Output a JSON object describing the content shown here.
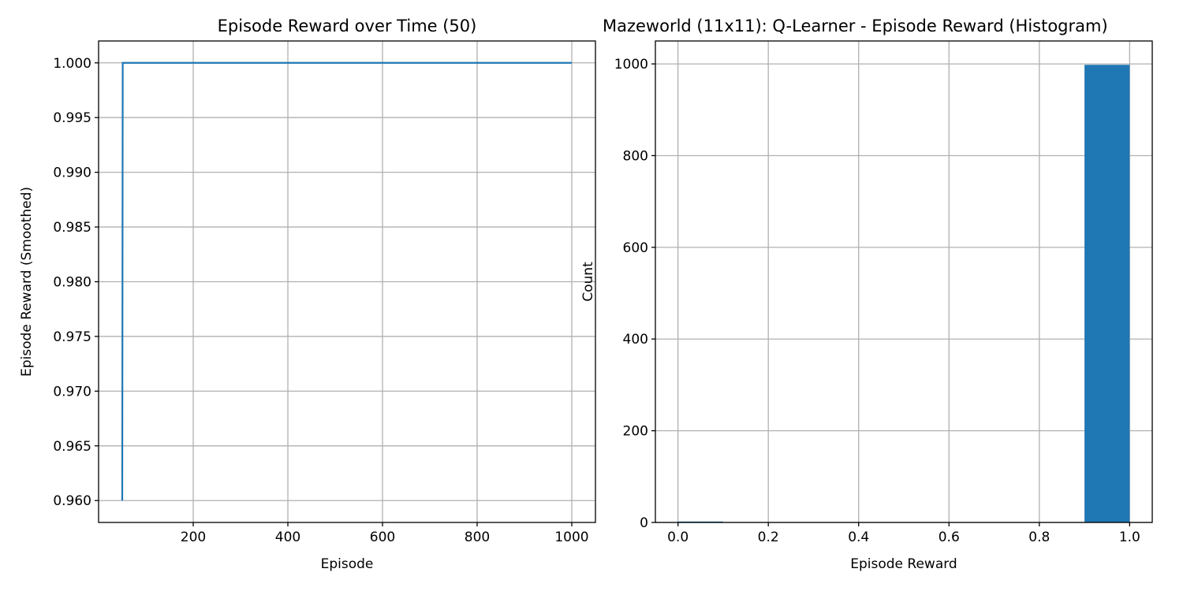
{
  "chart_data": [
    {
      "type": "line",
      "title": "Episode Reward over Time (50)",
      "xlabel": "Episode",
      "ylabel": "Episode Reward (Smoothed)",
      "xlim": [
        0,
        1050
      ],
      "ylim": [
        0.958,
        1.002
      ],
      "xticks": [
        200,
        400,
        600,
        800,
        1000
      ],
      "yticks": [
        0.96,
        0.965,
        0.97,
        0.975,
        0.98,
        0.985,
        0.99,
        0.995,
        1.0
      ],
      "ytick_labels": [
        "0.960",
        "0.965",
        "0.970",
        "0.975",
        "0.980",
        "0.985",
        "0.990",
        "0.995",
        "1.000"
      ],
      "grid": true,
      "color": "#1f77b4",
      "series": [
        {
          "x": [
            50,
            51,
            1000
          ],
          "y": [
            0.96,
            1.0,
            1.0
          ]
        }
      ]
    },
    {
      "type": "bar",
      "title": "Mazeworld (11x11): Q-Learner - Episode Reward (Histogram)",
      "xlabel": "Episode Reward",
      "ylabel": "Count",
      "xlim": [
        -0.05,
        1.05
      ],
      "ylim": [
        0,
        1050
      ],
      "xticks": [
        0.0,
        0.2,
        0.4,
        0.6,
        0.8,
        1.0
      ],
      "xtick_labels": [
        "0.0",
        "0.2",
        "0.4",
        "0.6",
        "0.8",
        "1.0"
      ],
      "yticks": [
        0,
        200,
        400,
        600,
        800,
        1000
      ],
      "grid": true,
      "color": "#1f77b4",
      "bins": [
        {
          "x0": 0.0,
          "x1": 0.1,
          "count": 2
        },
        {
          "x0": 0.1,
          "x1": 0.2,
          "count": 0
        },
        {
          "x0": 0.2,
          "x1": 0.3,
          "count": 0
        },
        {
          "x0": 0.3,
          "x1": 0.4,
          "count": 0
        },
        {
          "x0": 0.4,
          "x1": 0.5,
          "count": 0
        },
        {
          "x0": 0.5,
          "x1": 0.6,
          "count": 0
        },
        {
          "x0": 0.6,
          "x1": 0.7,
          "count": 0
        },
        {
          "x0": 0.7,
          "x1": 0.8,
          "count": 0
        },
        {
          "x0": 0.8,
          "x1": 0.9,
          "count": 0
        },
        {
          "x0": 0.9,
          "x1": 1.0,
          "count": 998
        }
      ]
    }
  ]
}
